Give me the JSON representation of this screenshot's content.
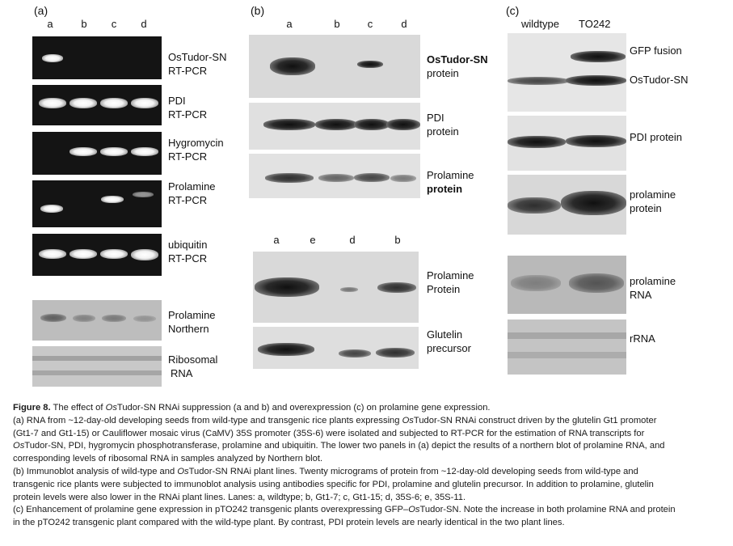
{
  "panel_a": {
    "tag": "(a)",
    "lanes": [
      "a",
      "b",
      "c",
      "d"
    ],
    "labels": {
      "ostudor_1": "OsTudor-SN",
      "ostudor_2": "RT-PCR",
      "pdi_1": "PDI",
      "pdi_2": "RT-PCR",
      "hyg_1": "Hygromycin",
      "hyg_2": "RT-PCR",
      "prol_1": "Prolamine",
      "prol_2": "RT-PCR",
      "ubi_1": "ubiquitin",
      "ubi_2": "RT-PCR",
      "north_1": "Prolamine",
      "north_2": "Northern",
      "ribo_1": "Ribosomal",
      "ribo_2": "RNA"
    }
  },
  "panel_b": {
    "tag": "(b)",
    "lanes_top": [
      "a",
      "b",
      "c",
      "d"
    ],
    "lanes_bottom": [
      "a",
      "e",
      "d",
      "b"
    ],
    "labels": {
      "ostudor_1": "OsTudor-SN",
      "ostudor_2": "protein",
      "pdi_1": "PDI",
      "pdi_2": "protein",
      "prol_1": "Prolamine",
      "prol_2": "protein",
      "prolB_1": "Prolamine",
      "prolB_2": "Protein",
      "glut_1": "Glutelin",
      "glut_2": "precursor"
    }
  },
  "panel_c": {
    "tag": "(c)",
    "lanes": [
      "wildtype",
      "TO242"
    ],
    "labels": {
      "gfp": "GFP fusion",
      "ostudor": "OsTudor-SN",
      "pdi": "PDI protein",
      "prol_1": "prolamine",
      "prol_2": "protein",
      "rna_1": "prolamine",
      "rna_2": "RNA",
      "rrna": "rRNA"
    }
  },
  "caption": {
    "title_bold": "Figure 8.",
    "title_a": " The effect of ",
    "title_i": "Os",
    "title_b": "Tudor-SN RNAi suppression (a and b) and overexpression (c) on prolamine gene expression.",
    "a1": "(a) RNA from ~12-day-old developing seeds from wild-type and transgenic rice plants expressing ",
    "a1_i": "Os",
    "a1_b": "Tudor-SN RNAi construct driven by the glutelin Gt1 promoter",
    "a2": "(Gt1-7 and Gt1-15) or Cauliflower mosaic virus (CaMV) 35S promoter (35S-6) were isolated and subjected to RT-PCR for the estimation of RNA transcripts for",
    "a3_i": "Os",
    "a3": "Tudor-SN, PDI, hygromycin phosphotransferase, prolamine and ubiquitin. The lower two panels in (a) depict the results of a northern blot of prolamine RNA, and",
    "a4": "corresponding levels of ribosomal RNA in samples analyzed by Northern blot.",
    "b1": "(b) Immunoblot analysis of wild-type and ",
    "b1_i": "Os",
    "b1_b": "Tudor-SN RNAi plant lines. Twenty micrograms of protein from ~12-day-old developing seeds from wild-type and",
    "b2": "transgenic rice plants were subjected to immunoblot analysis using antibodies specific for PDI, prolamine and glutelin precursor. In addition to prolamine, glutelin",
    "b3": "protein levels were also lower in the RNAi plant lines. Lanes: a, wildtype; b, Gt1-7; c, Gt1-15; d, 35S-6; e, 35S-11.",
    "c1": "(c) Enhancement of prolamine gene expression in pTO242 transgenic plants overexpressing GFP–",
    "c1_i": "Os",
    "c1_b": "Tudor-SN. Note the increase in both prolamine RNA and protein",
    "c2": "in the pTO242 transgenic plant compared with the wild-type plant. By contrast, PDI protein levels are nearly identical in the two plant lines."
  }
}
